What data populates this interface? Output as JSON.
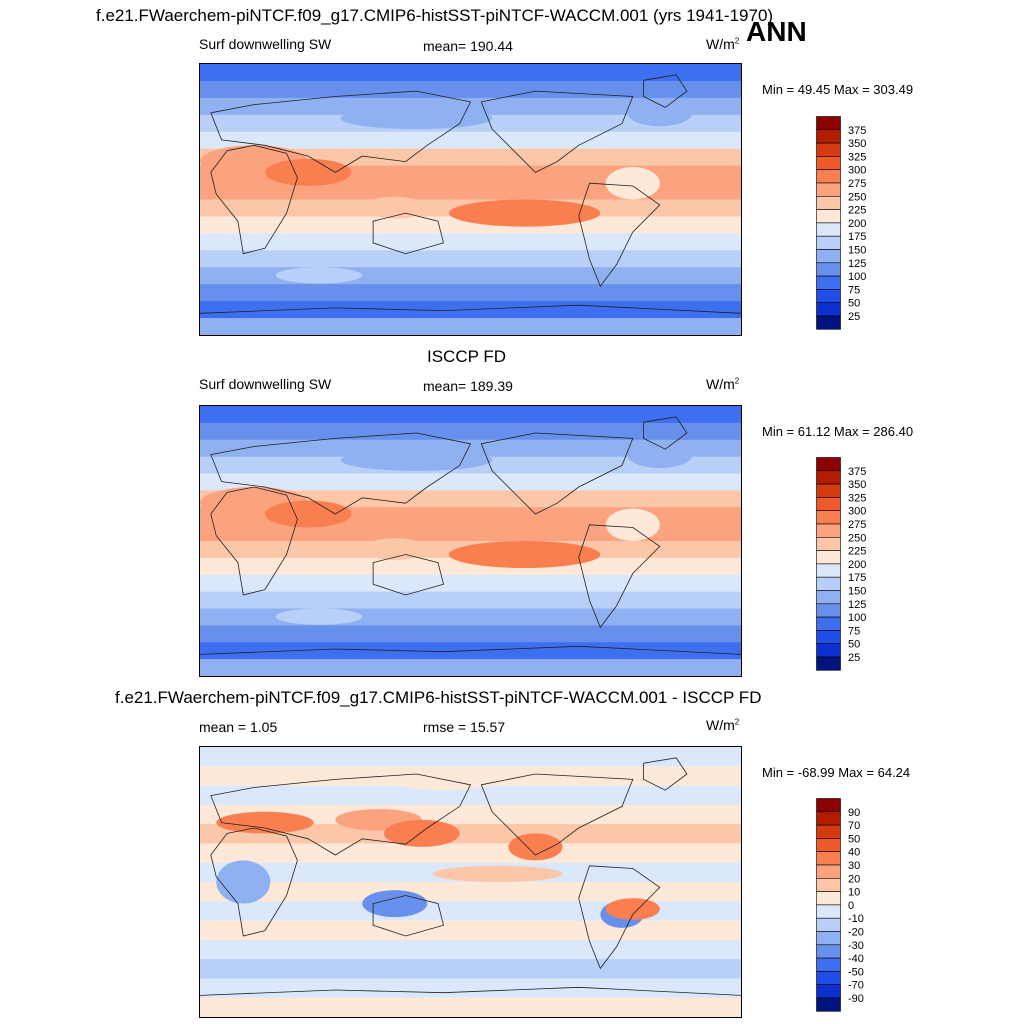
{
  "figure": {
    "main_title": "f.e21.FWaerchem-piNTCF.f09_g17.CMIP6-histSST-piNTCF-WACCM.001 (yrs 1941-1970)",
    "season": "ANN",
    "units": "W/m",
    "units_sup": "2"
  },
  "chart_data": [
    {
      "type": "heatmap",
      "panel": "model",
      "title": "f.e21.FWaerchem-piNTCF.f09_g17.CMIP6-histSST-piNTCF-WACCM.001 (yrs 1941-1970)",
      "left_label": "Surf downwelling SW",
      "center_label": "mean= 190.44",
      "mean": 190.44,
      "min_max_text": "Min =  49.45 Max = 303.49",
      "min": 49.45,
      "max": 303.49,
      "colorbar_levels": [
        "375",
        "350",
        "325",
        "300",
        "275",
        "250",
        "225",
        "200",
        "175",
        "150",
        "125",
        "100",
        "75",
        "50",
        "25"
      ],
      "colorbar_colors": [
        "#8b0000",
        "#b31c00",
        "#d63a10",
        "#ee5a2a",
        "#f97f50",
        "#fba37e",
        "#fcc6a8",
        "#fee8d8",
        "#dbe8fb",
        "#b8cff7",
        "#8fb1f1",
        "#6690ec",
        "#3e6ff0",
        "#1f4fe6",
        "#0d2fcf",
        "#00137f"
      ]
    },
    {
      "type": "heatmap",
      "panel": "observations",
      "title": "ISCCP FD",
      "left_label": "Surf downwelling SW",
      "center_label": "mean= 189.39",
      "mean": 189.39,
      "min_max_text": "Min =  61.12 Max = 286.40",
      "min": 61.12,
      "max": 286.4,
      "colorbar_levels": [
        "375",
        "350",
        "325",
        "300",
        "275",
        "250",
        "225",
        "200",
        "175",
        "150",
        "125",
        "100",
        "75",
        "50",
        "25"
      ],
      "colorbar_colors": [
        "#8b0000",
        "#b31c00",
        "#d63a10",
        "#ee5a2a",
        "#f97f50",
        "#fba37e",
        "#fcc6a8",
        "#fee8d8",
        "#dbe8fb",
        "#b8cff7",
        "#8fb1f1",
        "#6690ec",
        "#3e6ff0",
        "#1f4fe6",
        "#0d2fcf",
        "#00137f"
      ]
    },
    {
      "type": "heatmap",
      "panel": "difference",
      "title": "f.e21.FWaerchem-piNTCF.f09_g17.CMIP6-histSST-piNTCF-WACCM.001 - ISCCP FD",
      "left_label": "mean =   1.05",
      "center_label": "rmse =  15.57",
      "mean": 1.05,
      "rmse": 15.57,
      "min_max_text": "Min = -68.99 Max =  64.24",
      "min": -68.99,
      "max": 64.24,
      "colorbar_levels": [
        "90",
        "70",
        "50",
        "40",
        "30",
        "20",
        "10",
        "0",
        "-10",
        "-20",
        "-30",
        "-40",
        "-50",
        "-70",
        "-90"
      ],
      "colorbar_colors": [
        "#8b0000",
        "#b31c00",
        "#d63a10",
        "#ee5a2a",
        "#f97f50",
        "#fba37e",
        "#fcc6a8",
        "#fee8d8",
        "#dbe8fb",
        "#b8cff7",
        "#8fb1f1",
        "#6690ec",
        "#3e6ff0",
        "#1f4fe6",
        "#0d2fcf",
        "#00137f"
      ]
    }
  ]
}
